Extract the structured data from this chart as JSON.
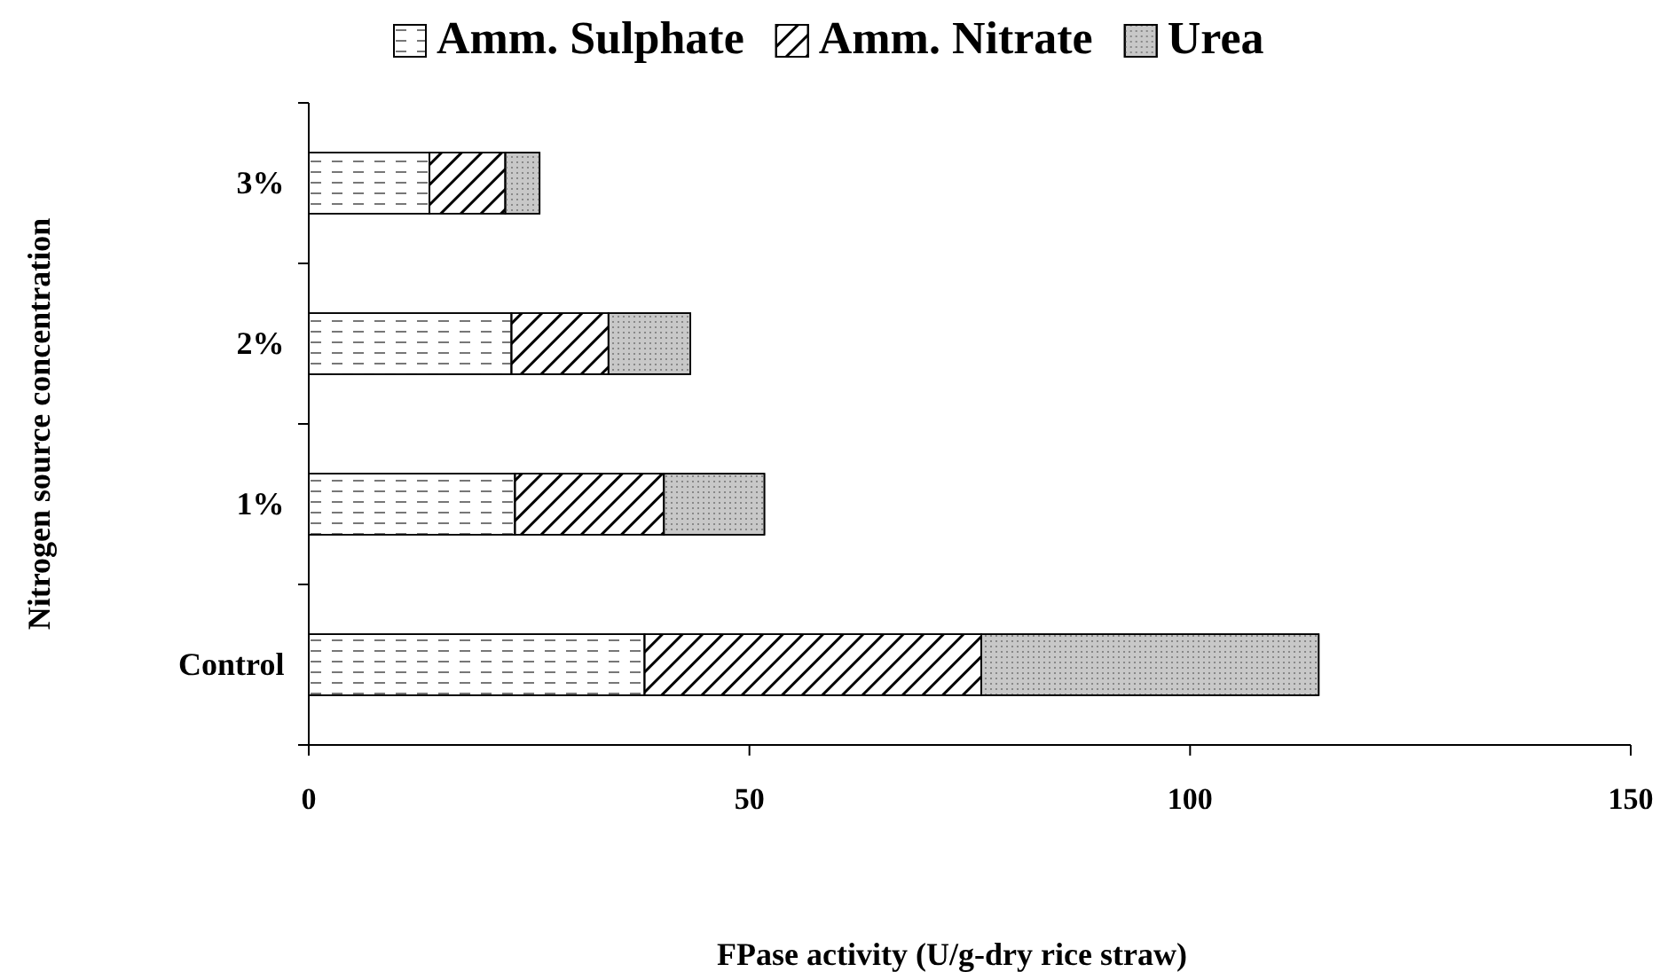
{
  "chart_data": {
    "type": "bar",
    "orientation": "horizontal",
    "stacked": true,
    "categories": [
      "3%",
      "2%",
      "1%",
      "Control"
    ],
    "series": [
      {
        "name": "Amm. Sulphate",
        "color": "#ffffff",
        "values": [
          13.7,
          23.0,
          23.4,
          38.1
        ]
      },
      {
        "name": "Amm. Nitrate",
        "color": "#ffffff",
        "values": [
          8.6,
          11.0,
          16.9,
          38.2
        ]
      },
      {
        "name": "Urea",
        "color": "#c8c8c8",
        "values": [
          3.9,
          9.3,
          11.4,
          38.3
        ]
      }
    ],
    "xlim": [
      0,
      150
    ],
    "xticks": [
      0,
      50,
      100,
      150
    ],
    "xlabel": "FPase activity (U/g-dry rice straw)",
    "ylabel": "Nitrogen source concentration",
    "legend": "top",
    "grid": false
  }
}
